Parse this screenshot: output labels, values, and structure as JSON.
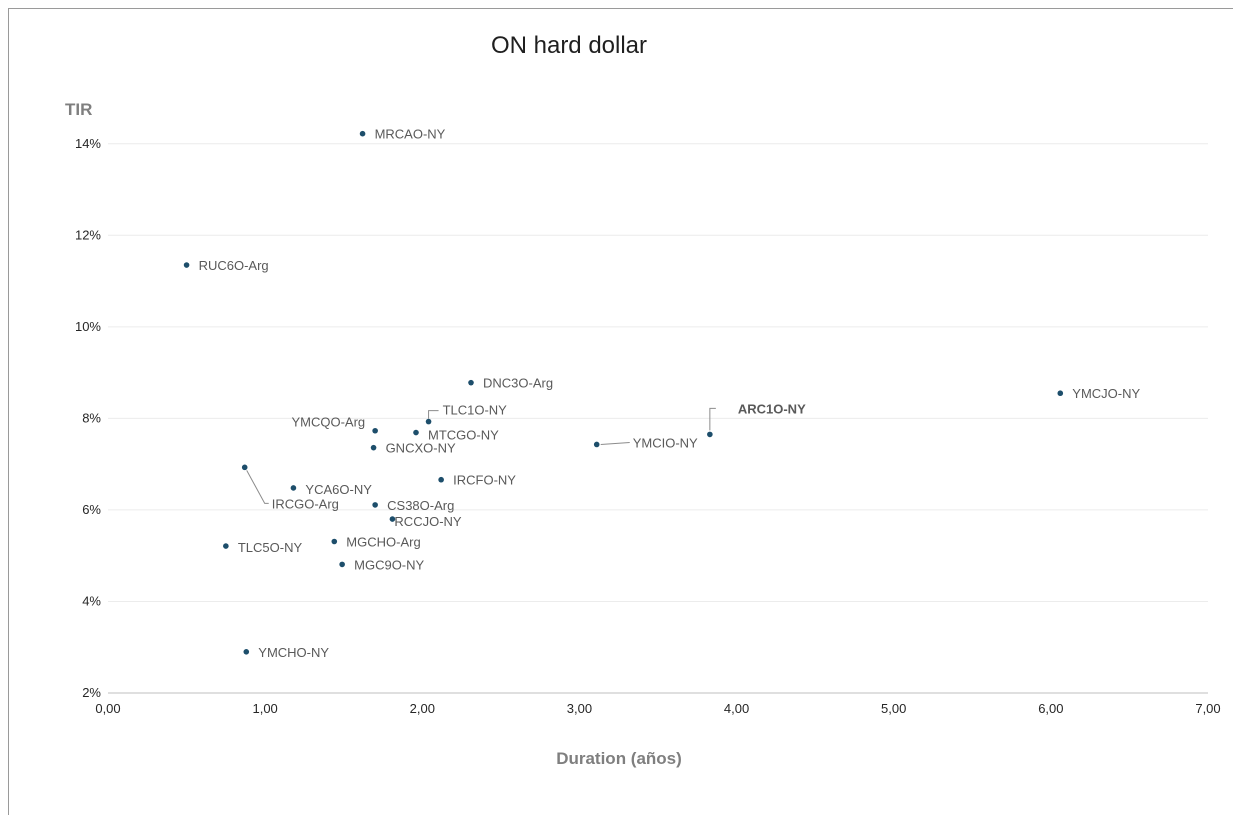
{
  "chart_data": {
    "type": "scatter",
    "title": "ON hard dollar",
    "xlabel": "Duration (años)",
    "ylabel": "TIR",
    "xlim": [
      0,
      7
    ],
    "ylim": [
      0.02,
      0.15
    ],
    "x_ticks": [
      "0,00",
      "1,00",
      "2,00",
      "3,00",
      "4,00",
      "5,00",
      "6,00",
      "7,00"
    ],
    "y_ticks": [
      "2%",
      "4%",
      "6%",
      "8%",
      "10%",
      "12%",
      "14%"
    ],
    "grid": "horizontal",
    "marker_color": "#1d4e6b",
    "points": [
      {
        "name": "MRCAO-NY",
        "x": 1.62,
        "y": 0.1422
      },
      {
        "name": "RUC6O-Arg",
        "x": 0.5,
        "y": 0.1135
      },
      {
        "name": "DNC3O-Arg",
        "x": 2.31,
        "y": 0.0878
      },
      {
        "name": "YMCJO-NY",
        "x": 6.06,
        "y": 0.0855
      },
      {
        "name": "TLC1O-NY",
        "x": 2.04,
        "y": 0.0793
      },
      {
        "name": "YMCQO-Arg",
        "x": 1.7,
        "y": 0.0773
      },
      {
        "name": "MTCGO-NY",
        "x": 1.96,
        "y": 0.0769
      },
      {
        "name": "ARC1O-NY",
        "x": 3.83,
        "y": 0.0765
      },
      {
        "name": "YMCIO-NY",
        "x": 3.11,
        "y": 0.0743
      },
      {
        "name": "GNCXO-NY",
        "x": 1.69,
        "y": 0.0736
      },
      {
        "name": "IRCGO-Arg",
        "x": 0.87,
        "y": 0.0693
      },
      {
        "name": "IRCFO-NY",
        "x": 2.12,
        "y": 0.0666
      },
      {
        "name": "YCA6O-NY",
        "x": 1.18,
        "y": 0.0648
      },
      {
        "name": "CS38O-Arg",
        "x": 1.7,
        "y": 0.0611
      },
      {
        "name": "RCCJO-NY",
        "x": 1.81,
        "y": 0.058
      },
      {
        "name": "MGCHO-Arg",
        "x": 1.44,
        "y": 0.0531
      },
      {
        "name": "TLC5O-NY",
        "x": 0.75,
        "y": 0.0521
      },
      {
        "name": "MGC9O-NY",
        "x": 1.49,
        "y": 0.0481
      },
      {
        "name": "YMCHO-NY",
        "x": 0.88,
        "y": 0.029
      }
    ]
  }
}
